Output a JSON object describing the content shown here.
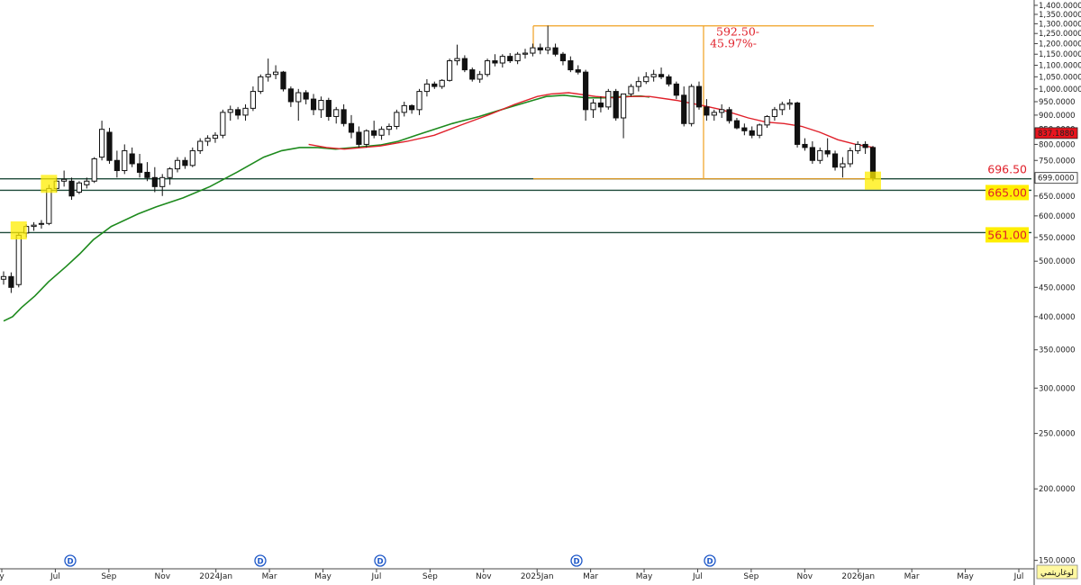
{
  "chart_data": {
    "type": "candlestick",
    "scale": "log",
    "ylim": [
      145,
      1420
    ],
    "x_start": "2023-05-01",
    "x_end": "2026-07-20",
    "y_ticks": [
      "1,400.0000",
      "1,350.0000",
      "1,300.0000",
      "1,250.0000",
      "1,200.0000",
      "1,150.0000",
      "1,100.0000",
      "1,050.0000",
      "1,000.0000",
      "950.0000",
      "900.0000",
      "850.0000",
      "800.0000",
      "750.0000",
      "699.0000",
      "650.0000",
      "600.0000",
      "550.0000",
      "500.0000",
      "450.0000",
      "400.0000",
      "350.0000",
      "300.0000",
      "250.0000",
      "200.0000",
      "150.0000"
    ],
    "x_ticks": [
      "y",
      "Jul",
      "Sep",
      "Nov",
      "2024Jan",
      "Mar",
      "May",
      "Jul",
      "Sep",
      "Nov",
      "2025Jan",
      "Mar",
      "May",
      "Jul",
      "Sep",
      "Nov",
      "2026Jan",
      "Mar",
      "May",
      "Jul"
    ],
    "candles": [
      [
        465,
        480,
        455,
        470
      ],
      [
        470,
        478,
        440,
        450
      ],
      [
        455,
        560,
        450,
        555
      ],
      [
        560,
        580,
        550,
        575
      ],
      [
        575,
        585,
        565,
        578
      ],
      [
        580,
        590,
        570,
        582
      ],
      [
        582,
        680,
        578,
        670
      ],
      [
        670,
        700,
        660,
        690
      ],
      [
        690,
        720,
        675,
        695
      ],
      [
        690,
        700,
        640,
        650
      ],
      [
        660,
        690,
        655,
        685
      ],
      [
        680,
        700,
        670,
        690
      ],
      [
        690,
        760,
        685,
        755
      ],
      [
        760,
        880,
        750,
        850
      ],
      [
        840,
        855,
        740,
        750
      ],
      [
        750,
        780,
        700,
        720
      ],
      [
        720,
        800,
        710,
        780
      ],
      [
        770,
        790,
        730,
        740
      ],
      [
        740,
        770,
        700,
        715
      ],
      [
        715,
        745,
        690,
        700
      ],
      [
        700,
        730,
        660,
        675
      ],
      [
        675,
        710,
        650,
        700
      ],
      [
        700,
        730,
        680,
        725
      ],
      [
        725,
        760,
        715,
        750
      ],
      [
        750,
        760,
        725,
        735
      ],
      [
        735,
        790,
        730,
        780
      ],
      [
        780,
        820,
        770,
        810
      ],
      [
        810,
        830,
        795,
        820
      ],
      [
        820,
        840,
        805,
        830
      ],
      [
        830,
        920,
        820,
        910
      ],
      [
        910,
        935,
        880,
        920
      ],
      [
        920,
        930,
        885,
        900
      ],
      [
        900,
        940,
        880,
        925
      ],
      [
        925,
        1010,
        915,
        990
      ],
      [
        990,
        1060,
        980,
        1050
      ],
      [
        1050,
        1130,
        1030,
        1060
      ],
      [
        1060,
        1100,
        1040,
        1070
      ],
      [
        1070,
        1075,
        990,
        1000
      ],
      [
        1000,
        1010,
        930,
        950
      ],
      [
        950,
        1000,
        880,
        985
      ],
      [
        985,
        995,
        940,
        960
      ],
      [
        960,
        980,
        900,
        920
      ],
      [
        920,
        970,
        890,
        955
      ],
      [
        955,
        965,
        880,
        895
      ],
      [
        895,
        930,
        870,
        920
      ],
      [
        920,
        940,
        860,
        870
      ],
      [
        870,
        900,
        820,
        840
      ],
      [
        840,
        860,
        790,
        800
      ],
      [
        800,
        850,
        790,
        845
      ],
      [
        845,
        880,
        820,
        830
      ],
      [
        830,
        860,
        815,
        850
      ],
      [
        850,
        870,
        830,
        860
      ],
      [
        860,
        920,
        850,
        910
      ],
      [
        910,
        950,
        895,
        935
      ],
      [
        935,
        940,
        905,
        920
      ],
      [
        920,
        1000,
        900,
        990
      ],
      [
        990,
        1040,
        970,
        1020
      ],
      [
        1020,
        1030,
        1000,
        1010
      ],
      [
        1010,
        1040,
        1000,
        1035
      ],
      [
        1035,
        1130,
        1030,
        1120
      ],
      [
        1120,
        1195,
        1100,
        1130
      ],
      [
        1130,
        1145,
        1070,
        1080
      ],
      [
        1080,
        1090,
        1030,
        1040
      ],
      [
        1040,
        1075,
        1025,
        1060
      ],
      [
        1060,
        1130,
        1050,
        1120
      ],
      [
        1120,
        1150,
        1095,
        1110
      ],
      [
        1110,
        1150,
        1090,
        1140
      ],
      [
        1140,
        1155,
        1110,
        1120
      ],
      [
        1120,
        1160,
        1105,
        1150
      ],
      [
        1150,
        1175,
        1130,
        1155
      ],
      [
        1155,
        1200,
        1140,
        1180
      ],
      [
        1180,
        1200,
        1150,
        1170
      ],
      [
        1170,
        1290,
        1150,
        1180
      ],
      [
        1180,
        1200,
        1140,
        1150
      ],
      [
        1150,
        1160,
        1100,
        1120
      ],
      [
        1120,
        1140,
        1070,
        1080
      ],
      [
        1080,
        1100,
        1060,
        1070
      ],
      [
        1070,
        1080,
        880,
        920
      ],
      [
        920,
        960,
        890,
        945
      ],
      [
        945,
        970,
        910,
        930
      ],
      [
        930,
        1000,
        920,
        990
      ],
      [
        990,
        1000,
        880,
        890
      ],
      [
        890,
        980,
        820,
        980
      ],
      [
        980,
        1020,
        970,
        1010
      ],
      [
        1010,
        1050,
        990,
        1030
      ],
      [
        1030,
        1070,
        1020,
        1050
      ],
      [
        1050,
        1080,
        1030,
        1060
      ],
      [
        1060,
        1090,
        1040,
        1050
      ],
      [
        1050,
        1060,
        1010,
        1020
      ],
      [
        1020,
        1030,
        960,
        975
      ],
      [
        975,
        1010,
        860,
        870
      ],
      [
        870,
        1020,
        860,
        1010
      ],
      [
        1010,
        1030,
        920,
        930
      ],
      [
        930,
        960,
        880,
        900
      ],
      [
        900,
        920,
        880,
        910
      ],
      [
        910,
        940,
        890,
        920
      ],
      [
        920,
        930,
        870,
        880
      ],
      [
        880,
        890,
        850,
        855
      ],
      [
        855,
        870,
        830,
        845
      ],
      [
        845,
        860,
        820,
        830
      ],
      [
        830,
        870,
        820,
        865
      ],
      [
        865,
        900,
        855,
        895
      ],
      [
        895,
        930,
        880,
        920
      ],
      [
        920,
        950,
        900,
        940
      ],
      [
        940,
        960,
        920,
        945
      ],
      [
        945,
        950,
        790,
        800
      ],
      [
        800,
        820,
        780,
        790
      ],
      [
        790,
        810,
        740,
        750
      ],
      [
        750,
        790,
        740,
        780
      ],
      [
        780,
        820,
        760,
        770
      ],
      [
        770,
        780,
        720,
        730
      ],
      [
        730,
        760,
        700,
        740
      ],
      [
        740,
        790,
        730,
        780
      ],
      [
        780,
        810,
        770,
        800
      ],
      [
        800,
        810,
        770,
        790
      ],
      [
        790,
        795,
        690,
        699
      ]
    ],
    "ma_green": [
      [
        0,
        393
      ],
      [
        10,
        400
      ],
      [
        20,
        415
      ],
      [
        35,
        435
      ],
      [
        50,
        460
      ],
      [
        70,
        490
      ],
      [
        85,
        515
      ],
      [
        100,
        545
      ],
      [
        120,
        575
      ],
      [
        150,
        605
      ],
      [
        170,
        622
      ],
      [
        200,
        645
      ],
      [
        230,
        675
      ],
      [
        260,
        715
      ],
      [
        290,
        760
      ],
      [
        310,
        780
      ],
      [
        330,
        790
      ],
      [
        350,
        790
      ],
      [
        370,
        785
      ],
      [
        390,
        790
      ],
      [
        420,
        798
      ],
      [
        440,
        810
      ],
      [
        460,
        830
      ],
      [
        480,
        850
      ],
      [
        500,
        870
      ],
      [
        530,
        895
      ],
      [
        560,
        925
      ],
      [
        590,
        955
      ],
      [
        605,
        970
      ],
      [
        625,
        975
      ],
      [
        650,
        965
      ],
      [
        670,
        965
      ],
      [
        690,
        970
      ],
      [
        710,
        972
      ],
      [
        720,
        968
      ]
    ],
    "ma_red": [
      [
        340,
        800
      ],
      [
        360,
        790
      ],
      [
        380,
        785
      ],
      [
        400,
        790
      ],
      [
        420,
        795
      ],
      [
        450,
        810
      ],
      [
        480,
        830
      ],
      [
        510,
        865
      ],
      [
        540,
        900
      ],
      [
        570,
        940
      ],
      [
        595,
        970
      ],
      [
        610,
        980
      ],
      [
        630,
        985
      ],
      [
        660,
        970
      ],
      [
        680,
        965
      ],
      [
        700,
        970
      ],
      [
        720,
        970
      ],
      [
        750,
        955
      ],
      [
        780,
        935
      ],
      [
        800,
        920
      ],
      [
        830,
        890
      ],
      [
        850,
        875
      ],
      [
        870,
        870
      ],
      [
        890,
        860
      ],
      [
        910,
        840
      ],
      [
        930,
        815
      ],
      [
        950,
        800
      ],
      [
        970,
        790
      ]
    ],
    "last_price": "699.0000",
    "ma_value": "837.1880",
    "levels": [
      {
        "price": 696.5,
        "label": "696.50",
        "color": "#e0202a",
        "highlight": false
      },
      {
        "price": 665,
        "label": "665.00",
        "color": "#e0202a",
        "highlight": true
      },
      {
        "price": 561,
        "label": "561.00",
        "color": "#e0202a",
        "highlight": true
      }
    ],
    "measure": {
      "change": "592.50-",
      "percent": "45.97%-",
      "price_from": 1289,
      "price_to": 696.5
    },
    "markers": {
      "dividend": "D"
    },
    "footer_label": "لوغاريتمي",
    "colors": {
      "ma_fast": "#e0202a",
      "ma_slow": "#1d8a1d",
      "level": "#1e4a3a",
      "measure": "#f0a020",
      "highlight": "#ffee00",
      "marker": "#1e58c8"
    }
  }
}
